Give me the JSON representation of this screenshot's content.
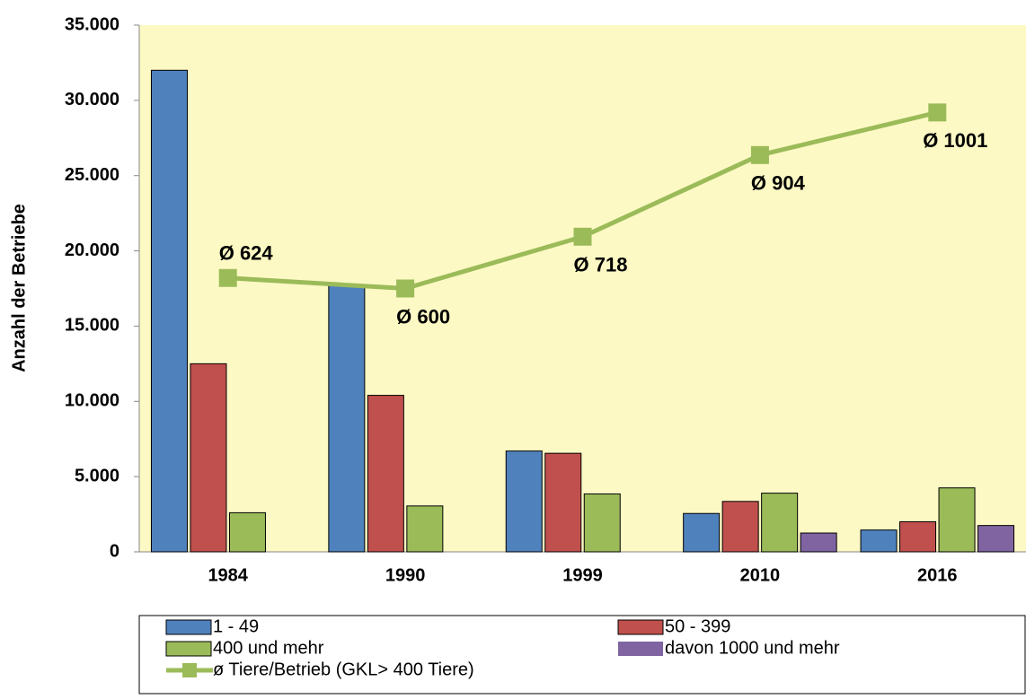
{
  "chart_data": {
    "type": "bar",
    "y_label": "Anzahl der Betriebe",
    "categories": [
      "1984",
      "1990",
      "1999",
      "2010",
      "2016"
    ],
    "series": [
      {
        "name": "1 - 49",
        "color": "#4f81bd",
        "values": [
          32000,
          17700,
          6700,
          2550,
          1450
        ]
      },
      {
        "name": "50 - 399",
        "color": "#c0504d",
        "values": [
          12500,
          10400,
          6550,
          3350,
          2000
        ]
      },
      {
        "name": "400 und mehr",
        "color": "#9bbb59",
        "values": [
          2600,
          3050,
          3850,
          3900,
          4250
        ]
      },
      {
        "name": "davon 1000 und mehr",
        "color": "#8064a2",
        "values": [
          null,
          null,
          null,
          1250,
          1750
        ]
      },
      {
        "name": "ø Tiere/Betrieb (GKL> 400 Tiere)",
        "type": "line",
        "axis": "y2",
        "color": "#9bbb59",
        "values": [
          624,
          600,
          718,
          904,
          1001
        ],
        "value_labels": [
          "Ø 624",
          "Ø 600",
          "Ø 718",
          "Ø 904",
          "Ø 1001"
        ]
      }
    ],
    "ylim": [
      0,
      35000
    ],
    "yticks": [
      0,
      {
        "value": 5000,
        "label": "5.000"
      },
      {
        "value": 10000,
        "label": "10.000"
      },
      {
        "value": 15000,
        "label": "15.000"
      },
      {
        "value": 20000,
        "label": "20.000"
      },
      {
        "value": 25000,
        "label": "25.000"
      },
      {
        "value": 30000,
        "label": "30.000"
      },
      {
        "value": 35000,
        "label": "35.000"
      }
    ],
    "y2lim": [
      0,
      1200
    ],
    "background": "#fdf9c4"
  }
}
